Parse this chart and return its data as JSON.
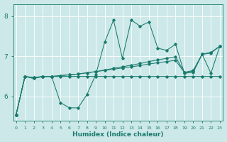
{
  "xlabel": "Humidex (Indice chaleur)",
  "background_color": "#cce8e8",
  "line_color": "#1a7a6e",
  "grid_color": "#ffffff",
  "ylim": [
    5.4,
    8.3
  ],
  "yticks": [
    6,
    7,
    8
  ],
  "ya": [
    5.55,
    6.5,
    6.45,
    6.5,
    6.5,
    5.85,
    5.72,
    5.72,
    6.05,
    6.55,
    7.35,
    7.9,
    6.95,
    7.9,
    7.75,
    7.85,
    7.2,
    7.15,
    7.3,
    6.58,
    6.6,
    7.05,
    6.58,
    7.25
  ],
  "yb": [
    5.55,
    6.5,
    6.45,
    6.5,
    6.5,
    6.5,
    6.5,
    6.5,
    6.5,
    6.5,
    6.5,
    6.5,
    6.5,
    6.5,
    6.5,
    6.5,
    6.5,
    6.5,
    6.5,
    6.5,
    6.5,
    6.5,
    6.5,
    6.5
  ],
  "yc": [
    5.55,
    6.5,
    6.47,
    6.5,
    6.5,
    6.52,
    6.54,
    6.56,
    6.59,
    6.62,
    6.65,
    6.68,
    6.71,
    6.74,
    6.77,
    6.81,
    6.84,
    6.87,
    6.9,
    6.6,
    6.63,
    7.05,
    7.08,
    7.25
  ],
  "yd": [
    5.55,
    6.5,
    6.47,
    6.5,
    6.5,
    6.52,
    6.54,
    6.56,
    6.59,
    6.62,
    6.66,
    6.7,
    6.74,
    6.78,
    6.82,
    6.87,
    6.91,
    6.95,
    6.99,
    6.6,
    6.65,
    7.05,
    7.1,
    7.25
  ]
}
